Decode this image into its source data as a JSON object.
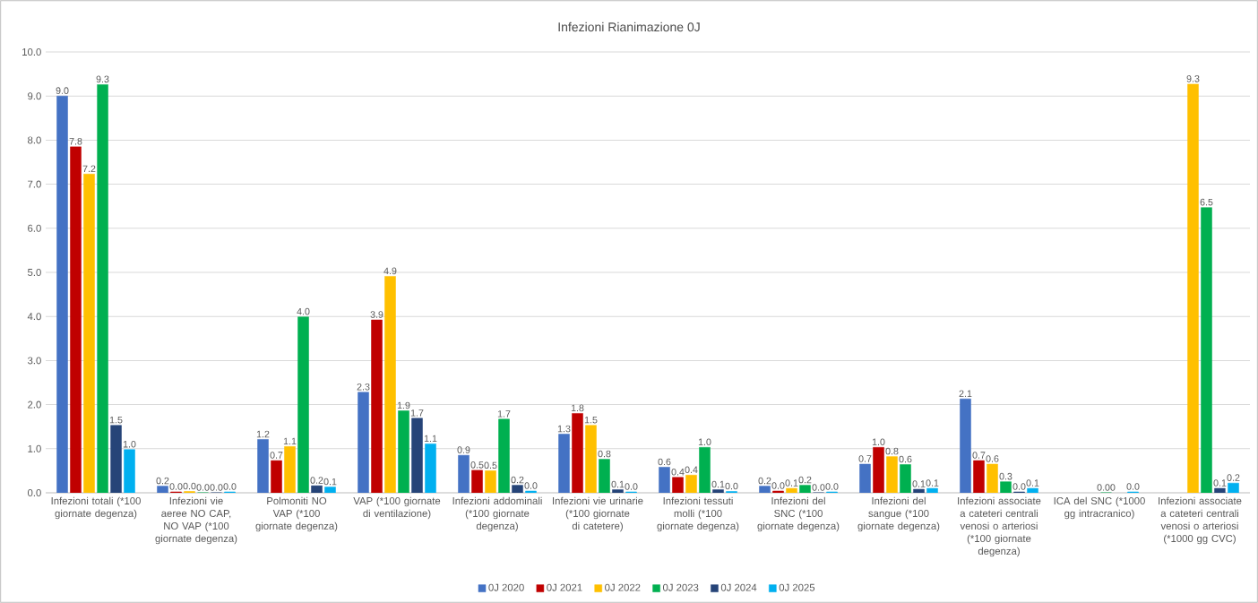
{
  "chart_data": {
    "type": "bar",
    "title": "Infezioni Rianimazione 0J",
    "categories": [
      "Infezioni totali (*100 giornate degenza)",
      "Infezioni vie aeree NO CAP, NO VAP (*100 giornate degenza)",
      "Polmoniti NO VAP (*100 giornate degenza)",
      "VAP (*100 giornate di ventilazione)",
      "Infezioni addominali (*100 giornate degenza)",
      "Infezioni vie urinarie (*100 giornate di catetere)",
      "Infezioni tessuti molli (*100 giornate degenza)",
      "Infezioni del SNC (*100 giornate degenza)",
      "Infezioni del sangue (*100 giornate degenza)",
      "Infezioni associate a cateteri centrali venosi o arteriosi (*100 giornate degenza)",
      "ICA del SNC (*1000 gg intracranico)",
      "Infezioni associate a cateteri centrali venosi o arteriosi (*1000 gg CVC)"
    ],
    "series": [
      {
        "name": "0J 2020",
        "color": "#4472c4",
        "values": [
          9.0,
          0.15,
          1.21,
          2.28,
          0.85,
          1.33,
          0.58,
          0.15,
          0.65,
          2.13,
          null,
          null
        ],
        "value_labels": [
          "9.0",
          "0.2",
          "1.2",
          "2.3",
          "0.9",
          "1.3",
          "0.6",
          "0.2",
          "0.7",
          "2.1",
          null,
          null
        ]
      },
      {
        "name": "0J 2021",
        "color": "#c00000",
        "values": [
          7.85,
          0.02,
          0.73,
          3.92,
          0.51,
          1.8,
          0.35,
          0.04,
          1.03,
          0.73,
          null,
          null
        ],
        "value_labels": [
          "7.8",
          "0.0",
          "0.7",
          "3.9",
          "0.5",
          "1.8",
          "0.4",
          "0.0",
          "1.0",
          "0.7",
          null,
          null
        ]
      },
      {
        "name": "0J 2022",
        "color": "#ffc000",
        "values": [
          7.23,
          0.03,
          1.05,
          4.91,
          0.5,
          1.53,
          0.4,
          0.1,
          0.82,
          0.65,
          null,
          9.27
        ],
        "value_labels": [
          "7.2",
          "0.0",
          "1.1",
          "4.9",
          "0.5",
          "1.5",
          "0.4",
          "0.1",
          "0.8",
          "0.6",
          null,
          "9.3"
        ]
      },
      {
        "name": "0J 2023",
        "color": "#00b050",
        "values": [
          9.26,
          0.0,
          3.99,
          1.86,
          1.67,
          0.76,
          1.03,
          0.17,
          0.64,
          0.25,
          0.0,
          6.47
        ],
        "value_labels": [
          "9.3",
          "0.0",
          "4.0",
          "1.9",
          "1.7",
          "0.8",
          "1.0",
          "0.2",
          "0.6",
          "0.3",
          "0.00",
          "6.5"
        ]
      },
      {
        "name": "0J 2024",
        "color": "#264478",
        "values": [
          1.53,
          0.0,
          0.16,
          1.69,
          0.17,
          0.07,
          0.07,
          0.0,
          0.08,
          0.02,
          null,
          0.1
        ],
        "value_labels": [
          "1.5",
          "0.0",
          "0.2",
          "1.7",
          "0.2",
          "0.1",
          "0.1",
          "0.0",
          "0.1",
          "0.0",
          null,
          "0.1"
        ]
      },
      {
        "name": "0J 2025",
        "color": "#00b0f0",
        "values": [
          0.98,
          0.02,
          0.13,
          1.11,
          0.04,
          0.02,
          0.03,
          0.02,
          0.1,
          0.1,
          0.02,
          0.22
        ],
        "value_labels": [
          "1.0",
          "0.0",
          "0.1",
          "1.1",
          "0.0",
          "0.0",
          "0.0",
          "0.0",
          "0.1",
          "0.1",
          "0.0",
          "0.2"
        ]
      }
    ],
    "ylim": [
      0,
      10
    ],
    "yticks": [
      {
        "value": 0,
        "label": "0.0"
      },
      {
        "value": 1,
        "label": "1.0"
      },
      {
        "value": 2,
        "label": "2.0"
      },
      {
        "value": 3,
        "label": "3.0"
      },
      {
        "value": 4,
        "label": "4.0"
      },
      {
        "value": 5,
        "label": "5.0"
      },
      {
        "value": 6,
        "label": "6.0"
      },
      {
        "value": 7,
        "label": "7.0"
      },
      {
        "value": 8,
        "label": "8.0"
      },
      {
        "value": 9,
        "label": "9.0"
      },
      {
        "value": 10,
        "label": "10.0"
      }
    ],
    "grid": "y",
    "legend": "bottom"
  }
}
